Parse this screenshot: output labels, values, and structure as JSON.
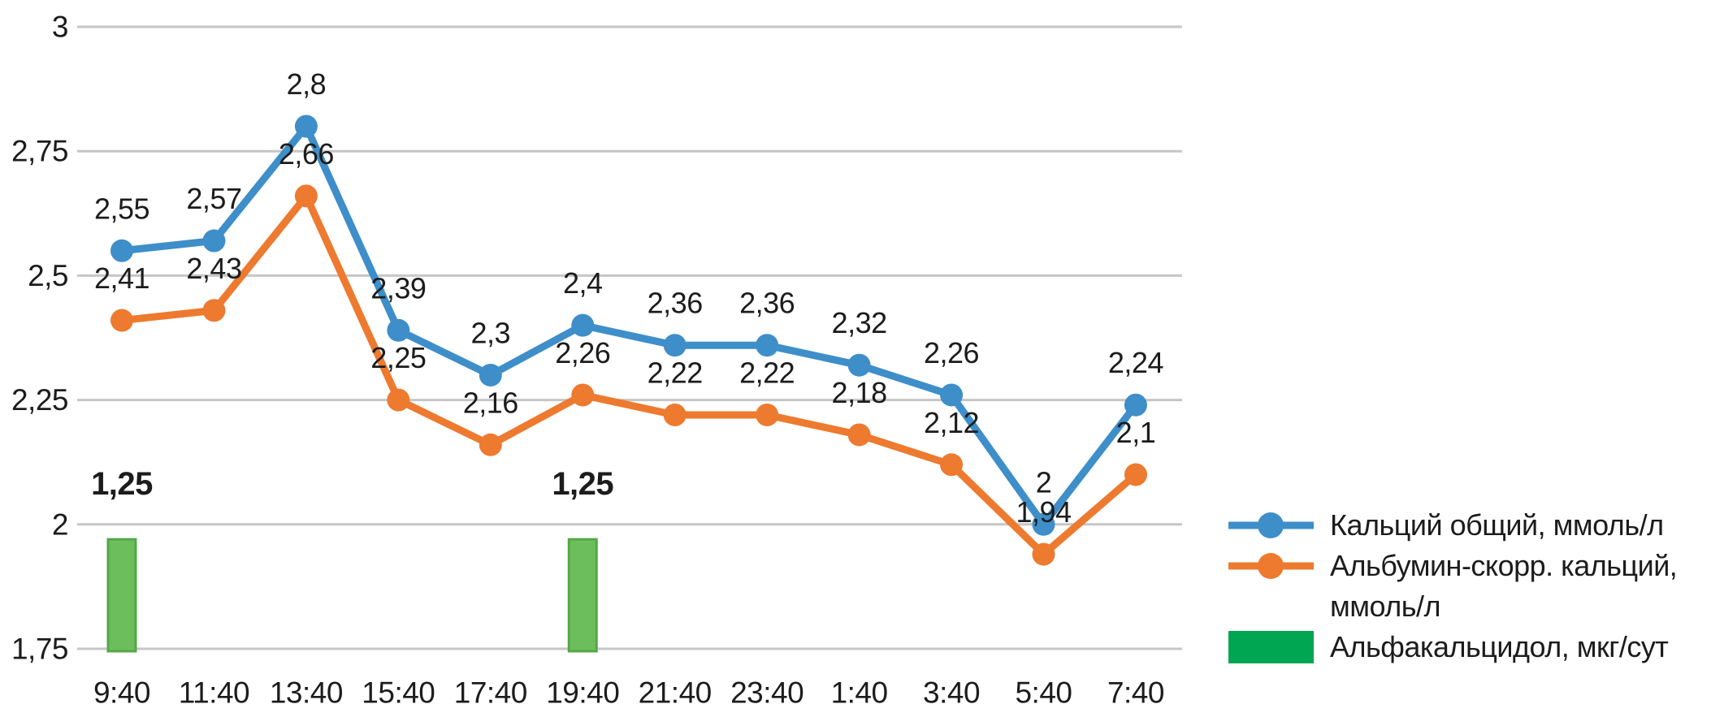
{
  "chart_data": {
    "type": "line",
    "x": [
      "9:40",
      "11:40",
      "13:40",
      "15:40",
      "17:40",
      "19:40",
      "21:40",
      "23:40",
      "1:40",
      "3:40",
      "5:40",
      "7:40"
    ],
    "series": [
      {
        "name": "Кальций общий, ммоль/л",
        "color": "#3e8ec9",
        "values": [
          2.55,
          2.57,
          2.8,
          2.39,
          2.3,
          2.4,
          2.36,
          2.36,
          2.32,
          2.26,
          2.0,
          2.24
        ],
        "labels": [
          "2,55",
          "2,57",
          "2,8",
          "2,39",
          "2,3",
          "2,4",
          "2,36",
          "2,36",
          "2,32",
          "2,26",
          "2",
          "2,24"
        ]
      },
      {
        "name": "Альбумин-скорр. кальций, ммоль/л",
        "color": "#ed7a2f",
        "values": [
          2.41,
          2.43,
          2.66,
          2.25,
          2.16,
          2.26,
          2.22,
          2.22,
          2.18,
          2.12,
          1.94,
          2.1
        ],
        "labels": [
          "2,41",
          "2,43",
          "2,66",
          "2,25",
          "2,16",
          "2,26",
          "2,22",
          "2,22",
          "2,18",
          "2,12",
          "1,94",
          "2,1"
        ]
      }
    ],
    "bars": {
      "name": "Альфакальцидол, мкг/сут",
      "fill": "#6cbe5c",
      "stroke": "#54a847",
      "value": 1.25,
      "items": [
        {
          "x": "9:40",
          "index": 0,
          "label": "1,25"
        },
        {
          "x": "19:40",
          "index": 5,
          "label": "1,25"
        }
      ],
      "plot_top_on_value_axis": 1.97
    },
    "y_axis": {
      "min": 1.75,
      "max": 3,
      "ticks": [
        {
          "v": 3,
          "label": "3"
        },
        {
          "v": 2.75,
          "label": "2,75"
        },
        {
          "v": 2.5,
          "label": "2,5"
        },
        {
          "v": 2.25,
          "label": "2,25"
        },
        {
          "v": 2,
          "label": "2"
        },
        {
          "v": 1.75,
          "label": "1,75"
        }
      ]
    },
    "title": "",
    "xlabel": "",
    "ylabel": "",
    "grid": true,
    "legend_position": "right",
    "gridline_color": "#c6c6c6",
    "text_color": "#1c1c1c"
  },
  "legend": {
    "items": [
      {
        "label": "Кальций общий, ммоль/л",
        "type": "line",
        "color": "#3e8ec9"
      },
      {
        "label": "Альбумин-скорр. кальций, ммоль/л",
        "type": "line",
        "color": "#ed7a2f"
      },
      {
        "label": "Альфакальцидол, мкг/сут",
        "type": "bar",
        "color": "#00a651"
      }
    ]
  }
}
